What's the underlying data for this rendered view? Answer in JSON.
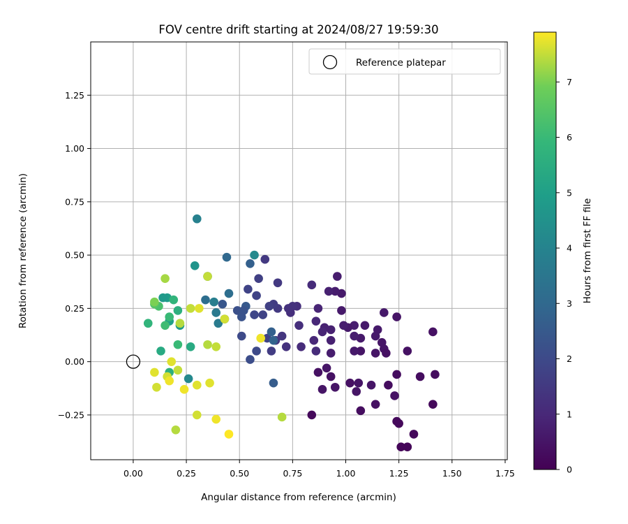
{
  "chart_data": {
    "type": "scatter",
    "title": "FOV centre drift starting at 2024/08/27 19:59:30",
    "xlabel": "Angular distance from reference (arcmin)",
    "ylabel": "Rotation from reference (arcmin)",
    "xlim": [
      -0.2,
      1.76
    ],
    "ylim": [
      -0.46,
      1.5
    ],
    "xticks": [
      "0.00",
      "0.25",
      "0.50",
      "0.75",
      "1.00",
      "1.25",
      "1.50",
      "1.75"
    ],
    "yticks": [
      "−0.25",
      "0.00",
      "0.25",
      "0.50",
      "0.75",
      "1.00",
      "1.25"
    ],
    "grid": true,
    "legend": {
      "location": "top-right",
      "entries": [
        "Reference platepar"
      ]
    },
    "reference_point": {
      "x": 0,
      "y": 0,
      "marker": "open-circle"
    },
    "colorbar": {
      "label": "Hours from first FF file",
      "range": [
        0,
        7.9
      ],
      "ticks": [
        "0",
        "1",
        "2",
        "3",
        "4",
        "5",
        "6",
        "7"
      ],
      "colormap": "viridis"
    },
    "points": [
      [
        0.84,
        -0.25,
        0.2
      ],
      [
        0.87,
        -0.05,
        0.4
      ],
      [
        0.89,
        -0.13,
        0.5
      ],
      [
        0.91,
        -0.03,
        0.5
      ],
      [
        0.93,
        -0.07,
        0.4
      ],
      [
        0.95,
        -0.12,
        0.5
      ],
      [
        1.02,
        -0.1,
        0.4
      ],
      [
        1.05,
        -0.14,
        0.5
      ],
      [
        1.06,
        -0.1,
        0.5
      ],
      [
        1.07,
        -0.23,
        0.3
      ],
      [
        1.12,
        -0.11,
        0.5
      ],
      [
        1.14,
        -0.2,
        0.4
      ],
      [
        1.2,
        -0.11,
        0.3
      ],
      [
        1.23,
        -0.16,
        0.4
      ],
      [
        1.24,
        -0.06,
        0.3
      ],
      [
        1.24,
        -0.28,
        0.2
      ],
      [
        1.25,
        -0.29,
        0.2
      ],
      [
        1.26,
        -0.4,
        0.1
      ],
      [
        1.29,
        -0.4,
        0.1
      ],
      [
        1.32,
        -0.34,
        0.2
      ],
      [
        1.35,
        -0.07,
        0.3
      ],
      [
        1.41,
        -0.2,
        0.2
      ],
      [
        1.42,
        -0.06,
        0.3
      ],
      [
        1.41,
        0.14,
        0.4
      ],
      [
        1.29,
        0.05,
        0.4
      ],
      [
        1.24,
        0.21,
        0.5
      ],
      [
        1.18,
        0.23,
        0.6
      ],
      [
        1.18,
        0.06,
        0.5
      ],
      [
        1.19,
        0.04,
        0.4
      ],
      [
        1.17,
        0.09,
        0.5
      ],
      [
        1.15,
        0.15,
        0.6
      ],
      [
        1.14,
        0.12,
        0.6
      ],
      [
        1.14,
        0.04,
        0.5
      ],
      [
        1.09,
        0.17,
        0.6
      ],
      [
        1.07,
        0.11,
        0.6
      ],
      [
        1.07,
        0.05,
        0.5
      ],
      [
        1.04,
        0.12,
        0.7
      ],
      [
        1.04,
        0.17,
        0.7
      ],
      [
        1.04,
        0.05,
        0.6
      ],
      [
        1.01,
        0.16,
        0.6
      ],
      [
        0.99,
        0.17,
        0.7
      ],
      [
        0.98,
        0.24,
        0.6
      ],
      [
        0.98,
        0.32,
        0.6
      ],
      [
        0.96,
        0.4,
        0.7
      ],
      [
        0.95,
        0.33,
        0.7
      ],
      [
        0.92,
        0.33,
        0.8
      ],
      [
        0.93,
        0.15,
        0.8
      ],
      [
        0.93,
        0.1,
        0.8
      ],
      [
        0.93,
        0.04,
        0.7
      ],
      [
        0.9,
        0.16,
        0.8
      ],
      [
        0.89,
        0.14,
        0.9
      ],
      [
        0.87,
        0.25,
        0.9
      ],
      [
        0.86,
        0.19,
        1.0
      ],
      [
        0.85,
        0.1,
        1.0
      ],
      [
        0.86,
        0.05,
        1.1
      ],
      [
        0.84,
        0.36,
        1.1
      ],
      [
        0.79,
        0.07,
        1.1
      ],
      [
        0.78,
        0.17,
        1.2
      ],
      [
        0.77,
        0.26,
        1.2
      ],
      [
        0.75,
        0.26,
        1.3
      ],
      [
        0.74,
        0.23,
        1.2
      ],
      [
        0.73,
        0.25,
        1.3
      ],
      [
        0.72,
        0.07,
        1.3
      ],
      [
        0.7,
        0.12,
        1.4
      ],
      [
        0.68,
        0.25,
        1.5
      ],
      [
        0.68,
        0.37,
        1.5
      ],
      [
        0.67,
        0.1,
        1.4
      ],
      [
        0.66,
        0.27,
        1.6
      ],
      [
        0.65,
        0.05,
        1.6
      ],
      [
        0.64,
        0.26,
        1.7
      ],
      [
        0.63,
        0.11,
        1.8
      ],
      [
        0.62,
        0.48,
        1.5
      ],
      [
        0.61,
        0.22,
        1.8
      ],
      [
        0.59,
        0.39,
        1.7
      ],
      [
        0.58,
        0.31,
        1.8
      ],
      [
        0.58,
        0.05,
        2.0
      ],
      [
        0.57,
        0.22,
        1.9
      ],
      [
        0.55,
        0.01,
        2.1
      ],
      [
        0.54,
        0.34,
        1.8
      ],
      [
        0.51,
        0.12,
        2.0
      ],
      [
        0.49,
        0.24,
        2.2
      ],
      [
        0.42,
        0.27,
        2.4
      ],
      [
        0.53,
        0.26,
        2.5
      ],
      [
        0.55,
        0.46,
        2.7
      ],
      [
        0.51,
        0.21,
        2.3
      ],
      [
        0.52,
        0.24,
        2.3
      ],
      [
        0.66,
        -0.1,
        2.6
      ],
      [
        0.65,
        0.14,
        2.7
      ],
      [
        0.66,
        0.1,
        2.8
      ],
      [
        0.44,
        0.49,
        3.0
      ],
      [
        0.45,
        0.32,
        3.2
      ],
      [
        0.43,
        0.2,
        3.3
      ],
      [
        0.34,
        0.29,
        3.2
      ],
      [
        0.35,
        0.4,
        3.4
      ],
      [
        0.38,
        0.28,
        3.8
      ],
      [
        0.39,
        0.23,
        3.6
      ],
      [
        0.4,
        0.18,
        3.7
      ],
      [
        0.3,
        0.67,
        3.9
      ],
      [
        0.57,
        0.5,
        4.2
      ],
      [
        0.26,
        -0.08,
        4.2
      ],
      [
        0.29,
        0.45,
        4.6
      ],
      [
        0.22,
        0.17,
        4.8
      ],
      [
        0.16,
        0.3,
        4.9
      ],
      [
        0.14,
        0.3,
        4.8
      ],
      [
        0.17,
        0.19,
        5.0
      ],
      [
        0.27,
        0.07,
        5.4
      ],
      [
        0.13,
        0.05,
        5.4
      ],
      [
        0.17,
        -0.05,
        5.6
      ],
      [
        0.07,
        0.18,
        5.8
      ],
      [
        0.21,
        0.24,
        5.6
      ],
      [
        0.19,
        0.29,
        5.8
      ],
      [
        0.21,
        0.08,
        6.0
      ],
      [
        0.17,
        0.21,
        6.0
      ],
      [
        0.15,
        0.17,
        6.1
      ],
      [
        0.12,
        0.26,
        6.3
      ],
      [
        0.1,
        0.27,
        6.5
      ],
      [
        0.1,
        0.28,
        7.0
      ],
      [
        0.15,
        0.39,
        7.3
      ],
      [
        0.22,
        0.18,
        7.4
      ],
      [
        0.27,
        0.25,
        7.5
      ],
      [
        0.31,
        0.25,
        7.7
      ],
      [
        0.35,
        0.4,
        7.5
      ],
      [
        0.35,
        0.08,
        7.4
      ],
      [
        0.39,
        0.07,
        7.5
      ],
      [
        0.43,
        0.2,
        7.6
      ],
      [
        0.6,
        0.11,
        7.8
      ],
      [
        0.1,
        -0.05,
        7.7
      ],
      [
        0.11,
        -0.12,
        7.6
      ],
      [
        0.16,
        -0.07,
        7.6
      ],
      [
        0.17,
        -0.09,
        7.8
      ],
      [
        0.18,
        0.0,
        7.7
      ],
      [
        0.21,
        -0.04,
        7.5
      ],
      [
        0.24,
        -0.13,
        7.8
      ],
      [
        0.3,
        -0.11,
        7.7
      ],
      [
        0.3,
        -0.25,
        7.6
      ],
      [
        0.36,
        -0.1,
        7.7
      ],
      [
        0.39,
        -0.27,
        7.8
      ],
      [
        0.45,
        -0.34,
        7.9
      ],
      [
        0.7,
        -0.26,
        7.4
      ],
      [
        0.2,
        -0.32,
        7.4
      ]
    ]
  }
}
